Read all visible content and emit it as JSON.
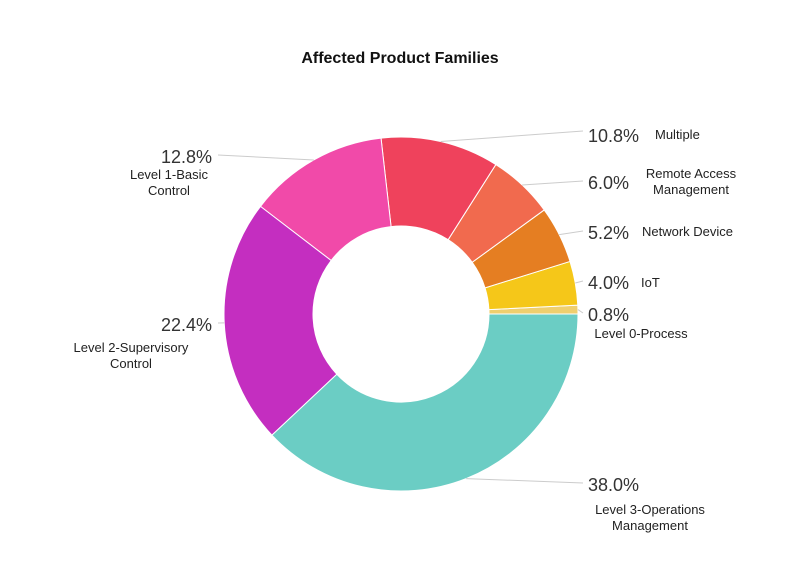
{
  "chart_data": {
    "type": "pie",
    "variant": "donut",
    "title": "Affected Product Families",
    "start": "east",
    "direction": "counterclockwise",
    "slices": [
      {
        "label": "Level 0-Process",
        "lines": [
          "Level 0-Process"
        ],
        "value": 0.8,
        "pct_label": "0.8%",
        "color": "#efcf6e"
      },
      {
        "label": "IoT",
        "lines": [
          "IoT"
        ],
        "value": 4.0,
        "pct_label": "4.0%",
        "color": "#f5c719"
      },
      {
        "label": "Network Device",
        "lines": [
          "Network Device"
        ],
        "value": 5.2,
        "pct_label": "5.2%",
        "color": "#e57e22"
      },
      {
        "label": "Remote Access Management",
        "lines": [
          "Remote Access",
          "Management"
        ],
        "value": 6.0,
        "pct_label": "6.0%",
        "color": "#f16a4e"
      },
      {
        "label": "Multiple",
        "lines": [
          "Multiple"
        ],
        "value": 10.8,
        "pct_label": "10.8%",
        "color": "#ef425c"
      },
      {
        "label": "Level 1-Basic Control",
        "lines": [
          "Level 1-Basic",
          "Control"
        ],
        "value": 12.8,
        "pct_label": "12.8%",
        "color": "#f14aa9"
      },
      {
        "label": "Level 2-Supervisory Control",
        "lines": [
          "Level 2-Supervisory",
          "Control"
        ],
        "value": 22.4,
        "pct_label": "22.4%",
        "color": "#c42ec0"
      },
      {
        "label": "Level 3-Operations Management",
        "lines": [
          "Level 3-Operations",
          "Management"
        ],
        "value": 38.0,
        "pct_label": "38.0%",
        "color": "#6bcdc4"
      }
    ]
  }
}
